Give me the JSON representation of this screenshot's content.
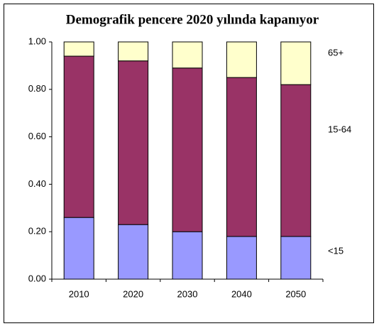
{
  "chart_data": {
    "type": "stacked_bar",
    "title": "Demografik pencere 2020 yılında kapanıyor",
    "categories": [
      "2010",
      "2020",
      "2030",
      "2040",
      "2050"
    ],
    "series": [
      {
        "name": "<15",
        "color": "#9999ff",
        "values": [
          0.26,
          0.23,
          0.2,
          0.18,
          0.18
        ]
      },
      {
        "name": "15-64",
        "color": "#993366",
        "values": [
          0.68,
          0.69,
          0.69,
          0.67,
          0.64
        ]
      },
      {
        "name": "65+",
        "color": "#ffffcc",
        "values": [
          0.06,
          0.08,
          0.11,
          0.15,
          0.18
        ]
      }
    ],
    "ylim": [
      0,
      1
    ],
    "yticks": [
      {
        "value": 0,
        "label": "0.00"
      },
      {
        "value": 0.2,
        "label": "0.20"
      },
      {
        "value": 0.4,
        "label": "0.40"
      },
      {
        "value": 0.6,
        "label": "0.60"
      },
      {
        "value": 0.8,
        "label": "0.80"
      },
      {
        "value": 1,
        "label": "1.00"
      }
    ],
    "grid": false
  }
}
